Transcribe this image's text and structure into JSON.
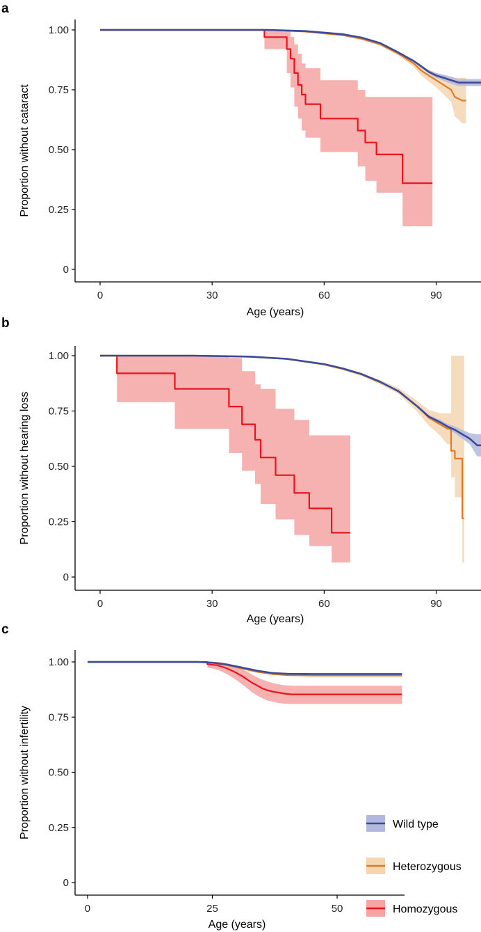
{
  "chart_data": [
    {
      "panel": "a",
      "type": "line",
      "xlabel": "Age (years)",
      "ylabel": "Proportion without cataract",
      "xlim": [
        0,
        102
      ],
      "ylim": [
        0,
        1
      ],
      "xticks": [
        0,
        30,
        60,
        90
      ],
      "xtick_labels": [
        "0",
        "30",
        "60",
        "90"
      ],
      "yticks": [
        0,
        0.25,
        0.5,
        0.75,
        1.0
      ],
      "ytick_labels": [
        "0",
        "0.25",
        "0.50",
        "0.75",
        "1.00"
      ],
      "series": [
        {
          "key": "homozygous",
          "color": "#e8141b",
          "band_color": "#f5a3a3",
          "x": [
            0,
            44,
            44,
            50,
            50,
            51,
            51,
            52,
            52,
            53,
            53,
            54,
            54,
            55,
            55,
            59,
            59,
            69,
            69,
            71,
            71,
            74,
            74,
            81,
            81,
            89
          ],
          "y": [
            1,
            1,
            0.97,
            0.97,
            0.92,
            0.92,
            0.88,
            0.88,
            0.82,
            0.82,
            0.77,
            0.77,
            0.73,
            0.73,
            0.69,
            0.69,
            0.63,
            0.63,
            0.58,
            0.58,
            0.53,
            0.53,
            0.48,
            0.48,
            0.36,
            0.36
          ],
          "lower": [
            1,
            1,
            0.92,
            0.92,
            0.82,
            0.82,
            0.76,
            0.76,
            0.68,
            0.68,
            0.63,
            0.63,
            0.58,
            0.58,
            0.55,
            0.55,
            0.49,
            0.49,
            0.43,
            0.43,
            0.37,
            0.37,
            0.32,
            0.32,
            0.18,
            0.18
          ],
          "upper": [
            1,
            1,
            1,
            1,
            1,
            1,
            0.97,
            0.97,
            0.94,
            0.94,
            0.9,
            0.9,
            0.86,
            0.86,
            0.84,
            0.84,
            0.79,
            0.79,
            0.75,
            0.75,
            0.72,
            0.72,
            0.72,
            0.72,
            0.72,
            0.72
          ]
        },
        {
          "key": "heterozygous",
          "color": "#e07b23",
          "band_color": "#f5d6b3",
          "x": [
            0,
            45,
            55,
            65,
            70,
            75,
            80,
            84,
            86,
            88,
            90,
            92,
            94,
            95,
            97,
            98
          ],
          "y": [
            1,
            1,
            0.993,
            0.978,
            0.963,
            0.94,
            0.9,
            0.86,
            0.83,
            0.81,
            0.79,
            0.77,
            0.75,
            0.72,
            0.705,
            0.705
          ],
          "lower": [
            1,
            1,
            0.99,
            0.974,
            0.958,
            0.934,
            0.892,
            0.845,
            0.81,
            0.785,
            0.76,
            0.73,
            0.7,
            0.64,
            0.61,
            0.61
          ],
          "upper": [
            1,
            1,
            0.996,
            0.982,
            0.968,
            0.946,
            0.908,
            0.875,
            0.85,
            0.835,
            0.82,
            0.81,
            0.805,
            0.8,
            0.8,
            0.8
          ]
        },
        {
          "key": "wild_type",
          "color": "#3b4b9a",
          "band_color": "#b3b9dc",
          "x": [
            0,
            45,
            55,
            65,
            70,
            75,
            80,
            84,
            86,
            88,
            90,
            92,
            94,
            96,
            98,
            102
          ],
          "y": [
            1,
            1,
            0.995,
            0.982,
            0.968,
            0.945,
            0.905,
            0.87,
            0.848,
            0.825,
            0.81,
            0.8,
            0.79,
            0.78,
            0.78,
            0.78
          ],
          "lower": [
            1,
            1,
            0.994,
            0.98,
            0.966,
            0.942,
            0.902,
            0.865,
            0.842,
            0.818,
            0.8,
            0.787,
            0.775,
            0.765,
            0.765,
            0.765
          ],
          "upper": [
            1,
            1,
            0.996,
            0.984,
            0.97,
            0.948,
            0.908,
            0.875,
            0.854,
            0.832,
            0.82,
            0.813,
            0.805,
            0.795,
            0.795,
            0.795
          ]
        }
      ]
    },
    {
      "panel": "b",
      "type": "line",
      "xlabel": "Age (years)",
      "ylabel": "Proportion without hearing loss",
      "xlim": [
        0,
        102
      ],
      "ylim": [
        0,
        1
      ],
      "xticks": [
        0,
        30,
        60,
        90
      ],
      "xtick_labels": [
        "0",
        "30",
        "60",
        "90"
      ],
      "yticks": [
        0,
        0.25,
        0.5,
        0.75,
        1.0
      ],
      "ytick_labels": [
        "0",
        "0.25",
        "0.50",
        "0.75",
        "1.00"
      ],
      "series": [
        {
          "key": "homozygous",
          "color": "#e8141b",
          "band_color": "#f5a3a3",
          "x": [
            0,
            4.5,
            4.5,
            20,
            20,
            34.5,
            34.5,
            38,
            38,
            41.5,
            41.5,
            43,
            43,
            47,
            47,
            52,
            52,
            56,
            56,
            62,
            62,
            67
          ],
          "y": [
            1,
            1,
            0.92,
            0.92,
            0.85,
            0.85,
            0.77,
            0.77,
            0.69,
            0.69,
            0.62,
            0.62,
            0.54,
            0.54,
            0.46,
            0.46,
            0.38,
            0.38,
            0.31,
            0.31,
            0.2,
            0.2
          ],
          "lower": [
            1,
            1,
            0.79,
            0.79,
            0.67,
            0.67,
            0.56,
            0.56,
            0.48,
            0.48,
            0.42,
            0.42,
            0.33,
            0.33,
            0.26,
            0.26,
            0.19,
            0.19,
            0.14,
            0.14,
            0.065,
            0.065
          ],
          "upper": [
            1,
            1,
            1,
            1,
            1,
            1,
            0.99,
            0.99,
            0.93,
            0.93,
            0.87,
            0.87,
            0.85,
            0.85,
            0.76,
            0.76,
            0.71,
            0.71,
            0.64,
            0.64,
            0.64,
            0.64
          ]
        },
        {
          "key": "heterozygous",
          "color": "#e07b23",
          "band_color": "#f5d6b3",
          "x": [
            0,
            25,
            40,
            50,
            60,
            65,
            70,
            75,
            80,
            85,
            88,
            91,
            93,
            94,
            94,
            95,
            95,
            97,
            97,
            97.5
          ],
          "y": [
            1,
            1,
            0.995,
            0.985,
            0.96,
            0.94,
            0.915,
            0.88,
            0.84,
            0.77,
            0.72,
            0.69,
            0.67,
            0.67,
            0.57,
            0.57,
            0.535,
            0.535,
            0.265,
            0.265
          ],
          "lower": [
            1,
            1,
            0.993,
            0.982,
            0.955,
            0.934,
            0.908,
            0.87,
            0.826,
            0.745,
            0.685,
            0.64,
            0.6,
            0.6,
            0.45,
            0.45,
            0.36,
            0.36,
            0.065,
            0.065
          ],
          "upper": [
            1,
            1,
            0.997,
            0.988,
            0.965,
            0.946,
            0.922,
            0.89,
            0.854,
            0.795,
            0.755,
            0.74,
            0.74,
            0.74,
            1,
            1,
            1,
            1,
            1,
            1
          ]
        },
        {
          "key": "wild_type",
          "color": "#3b4b9a",
          "band_color": "#b3b9dc",
          "x": [
            0,
            25,
            40,
            50,
            60,
            65,
            70,
            75,
            80,
            85,
            88,
            91,
            93,
            95,
            97,
            99,
            101,
            102
          ],
          "y": [
            1,
            1,
            0.996,
            0.986,
            0.962,
            0.942,
            0.917,
            0.882,
            0.838,
            0.77,
            0.725,
            0.7,
            0.68,
            0.665,
            0.645,
            0.625,
            0.595,
            0.595
          ],
          "lower": [
            1,
            1,
            0.995,
            0.985,
            0.96,
            0.94,
            0.915,
            0.879,
            0.834,
            0.765,
            0.718,
            0.69,
            0.668,
            0.65,
            0.625,
            0.6,
            0.545,
            0.545
          ],
          "upper": [
            1,
            1,
            0.997,
            0.987,
            0.964,
            0.944,
            0.919,
            0.885,
            0.842,
            0.775,
            0.732,
            0.71,
            0.692,
            0.68,
            0.665,
            0.65,
            0.645,
            0.645
          ]
        }
      ]
    },
    {
      "panel": "c",
      "type": "line",
      "xlabel": "Age (years)",
      "ylabel": "Proportion without infertility",
      "xlim": [
        -2.5,
        63.5
      ],
      "ylim": [
        0,
        1
      ],
      "xticks": [
        0,
        25,
        50
      ],
      "xtick_labels": [
        "0",
        "25",
        "50"
      ],
      "yticks": [
        0,
        0.25,
        0.5,
        0.75,
        1.0
      ],
      "ytick_labels": [
        "0",
        "0.25",
        "0.50",
        "0.75",
        "1.00"
      ],
      "legend": {
        "position": "bottom-right",
        "items": [
          {
            "label": "Wild type",
            "color": "#3b4b9a",
            "band_color": "#b3b9dc"
          },
          {
            "label": "Heterozygous",
            "color": "#e07b23",
            "band_color": "#f5d6b3"
          },
          {
            "label": "Homozygous",
            "color": "#e8141b",
            "band_color": "#f5a3a3"
          }
        ]
      },
      "series": [
        {
          "key": "homozygous",
          "color": "#e8141b",
          "band_color": "#f5a3a3",
          "x": [
            0,
            24,
            24,
            26,
            27,
            28,
            29,
            30,
            31,
            32,
            33,
            34,
            35,
            36,
            37,
            38,
            39,
            40,
            41,
            50,
            63
          ],
          "y": [
            1,
            1,
            0.99,
            0.985,
            0.978,
            0.97,
            0.96,
            0.948,
            0.935,
            0.92,
            0.905,
            0.893,
            0.88,
            0.872,
            0.866,
            0.862,
            0.858,
            0.855,
            0.853,
            0.853,
            0.853
          ],
          "lower": [
            1,
            1,
            0.975,
            0.965,
            0.955,
            0.944,
            0.93,
            0.915,
            0.898,
            0.88,
            0.862,
            0.848,
            0.835,
            0.826,
            0.82,
            0.815,
            0.812,
            0.81,
            0.81,
            0.81,
            0.81
          ],
          "upper": [
            1,
            1,
            1,
            1,
            0.998,
            0.992,
            0.985,
            0.977,
            0.968,
            0.955,
            0.942,
            0.93,
            0.92,
            0.912,
            0.905,
            0.9,
            0.896,
            0.893,
            0.892,
            0.892,
            0.892
          ]
        },
        {
          "key": "heterozygous",
          "color": "#e07b23",
          "band_color": "#f5d6b3",
          "x": [
            0,
            22,
            25,
            28,
            31,
            34,
            37,
            40,
            45,
            50,
            63
          ],
          "y": [
            1,
            1,
            0.996,
            0.985,
            0.97,
            0.955,
            0.945,
            0.94,
            0.938,
            0.938,
            0.938
          ],
          "lower": [
            1,
            1,
            0.994,
            0.983,
            0.968,
            0.953,
            0.942,
            0.937,
            0.935,
            0.935,
            0.935
          ],
          "upper": [
            1,
            1,
            0.998,
            0.987,
            0.972,
            0.957,
            0.948,
            0.943,
            0.941,
            0.941,
            0.941
          ]
        },
        {
          "key": "wild_type",
          "color": "#3b4b9a",
          "band_color": "#b3b9dc",
          "x": [
            0,
            22,
            25,
            28,
            31,
            34,
            37,
            40,
            45,
            50,
            63
          ],
          "y": [
            1,
            1,
            0.997,
            0.988,
            0.974,
            0.96,
            0.95,
            0.946,
            0.945,
            0.945,
            0.945
          ],
          "lower": [
            1,
            1,
            0.996,
            0.987,
            0.973,
            0.959,
            0.949,
            0.945,
            0.944,
            0.944,
            0.944
          ],
          "upper": [
            1,
            1,
            0.998,
            0.989,
            0.975,
            0.961,
            0.951,
            0.947,
            0.946,
            0.946,
            0.946
          ]
        }
      ]
    }
  ]
}
